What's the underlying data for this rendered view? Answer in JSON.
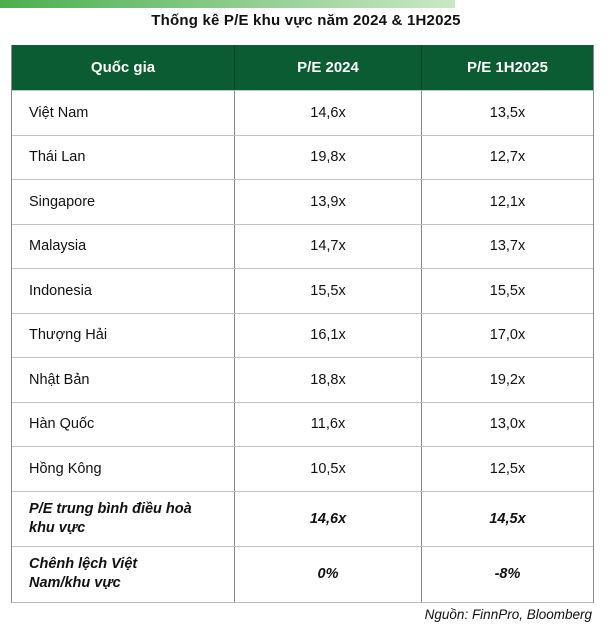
{
  "colors": {
    "header_bg": "#0B5C32",
    "header_text": "#FFFFFF",
    "accent_bar_start": "#4CAE4F",
    "accent_bar_end": "#C9E8C5",
    "grid_vertical": "#8A8A8A",
    "grid_horizontal": "#C2C2C2"
  },
  "chart_data": {
    "type": "table",
    "title": "Thống kê P/E khu vực năm 2024 & 1H2025",
    "columns": [
      "Quốc gia",
      "P/E 2024",
      "P/E 1H2025"
    ],
    "rows": [
      {
        "country": "Việt Nam",
        "pe_2024": "14,6x",
        "pe_1h2025": "13,5x"
      },
      {
        "country": "Thái Lan",
        "pe_2024": "19,8x",
        "pe_1h2025": "12,7x"
      },
      {
        "country": "Singapore",
        "pe_2024": "13,9x",
        "pe_1h2025": "12,1x"
      },
      {
        "country": "Malaysia",
        "pe_2024": "14,7x",
        "pe_1h2025": "13,7x"
      },
      {
        "country": "Indonesia",
        "pe_2024": "15,5x",
        "pe_1h2025": "15,5x"
      },
      {
        "country": "Thượng Hải",
        "pe_2024": "16,1x",
        "pe_1h2025": "17,0x"
      },
      {
        "country": "Nhật Bản",
        "pe_2024": "18,8x",
        "pe_1h2025": "19,2x"
      },
      {
        "country": "Hàn Quốc",
        "pe_2024": "11,6x",
        "pe_1h2025": "13,0x"
      },
      {
        "country": "Hồng Kông",
        "pe_2024": "10,5x",
        "pe_1h2025": "12,5x"
      }
    ],
    "summary_rows": [
      {
        "label": "P/E trung bình điều hoà\nkhu vực",
        "pe_2024": "14,6x",
        "pe_1h2025": "14,5x"
      },
      {
        "label": "Chênh lệch Việt\nNam/khu vực",
        "pe_2024": "0%",
        "pe_1h2025": "-8%"
      }
    ],
    "source": "Nguồn: FinnPro, Bloomberg"
  }
}
